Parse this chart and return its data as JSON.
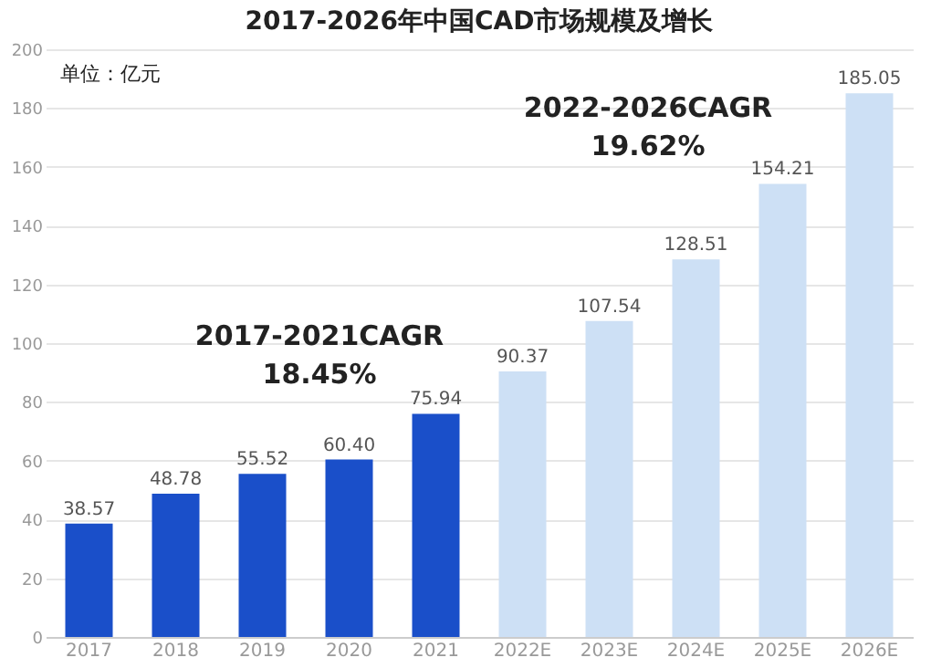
{
  "chart_data": {
    "type": "bar",
    "title": "2017-2026年中国CAD市场规模及增长",
    "categories": [
      "2017",
      "2018",
      "2019",
      "2020",
      "2021",
      "2022E",
      "2023E",
      "2024E",
      "2025E",
      "2026E"
    ],
    "values": [
      38.57,
      48.78,
      55.52,
      60.4,
      75.94,
      90.37,
      107.54,
      128.51,
      154.21,
      185.05
    ],
    "colors": [
      "#1a4fc9",
      "#1a4fc9",
      "#1a4fc9",
      "#1a4fc9",
      "#1a4fc9",
      "#cde0f5",
      "#cde0f5",
      "#cde0f5",
      "#cde0f5",
      "#cde0f5"
    ],
    "ylim": [
      0,
      200
    ],
    "yticks": [
      0,
      20,
      40,
      60,
      80,
      100,
      120,
      140,
      160,
      180,
      200
    ],
    "grid": "y",
    "value_labels": [
      "38.57",
      "48.78",
      "55.52",
      "60.40",
      "75.94",
      "90.37",
      "107.54",
      "128.51",
      "154.21",
      "185.05"
    ],
    "annotations": [
      "单位：亿元",
      "2017-2021CAGR\n18.45%",
      "2022-2026CAGR\n19.62%"
    ]
  }
}
